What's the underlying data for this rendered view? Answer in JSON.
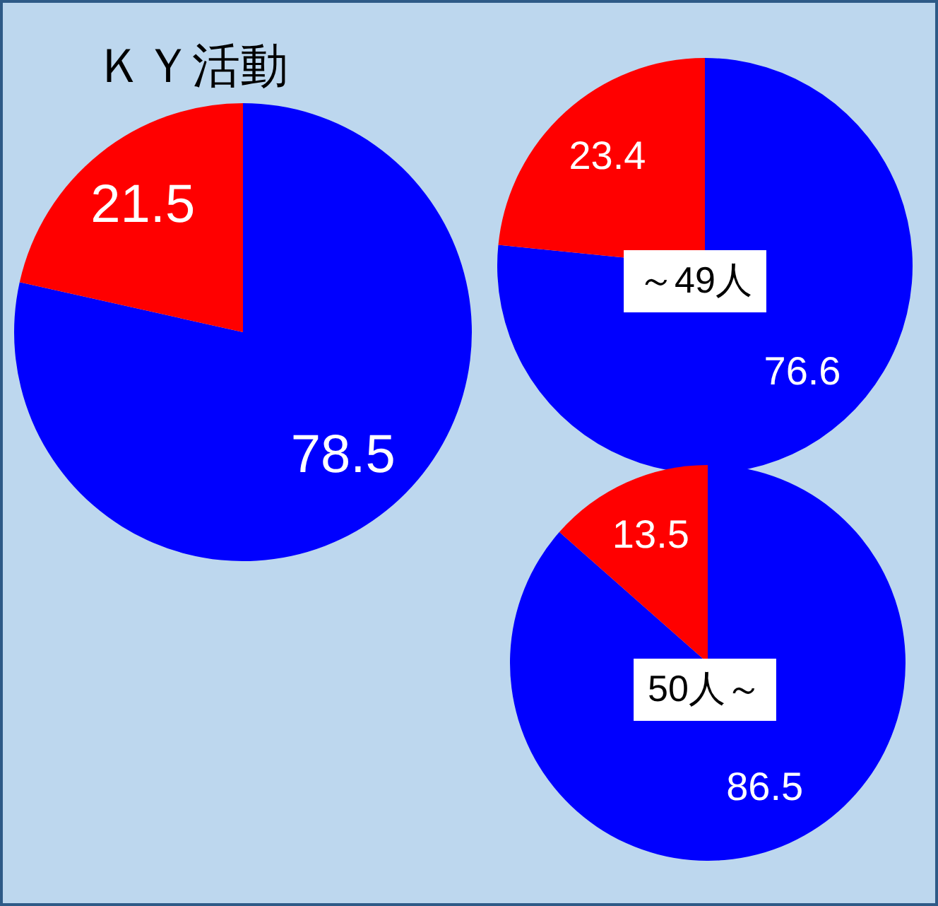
{
  "chart_data": [
    {
      "type": "pie",
      "title": "ＫＹ活動",
      "categories": [
        null,
        null
      ],
      "values": [
        78.5,
        21.5
      ],
      "colors": [
        "#0000ff",
        "#ff0000"
      ],
      "data_labels": true
    },
    {
      "type": "pie",
      "categories": [
        null,
        null
      ],
      "values": [
        76.6,
        23.4
      ],
      "colors": [
        "#0000ff",
        "#ff0000"
      ],
      "data_labels": true,
      "annotations": [
        "～49人"
      ]
    },
    {
      "type": "pie",
      "categories": [
        null,
        null
      ],
      "values": [
        86.5,
        13.5
      ],
      "colors": [
        "#0000ff",
        "#ff0000"
      ],
      "data_labels": true,
      "annotations": [
        "50人～"
      ]
    }
  ]
}
